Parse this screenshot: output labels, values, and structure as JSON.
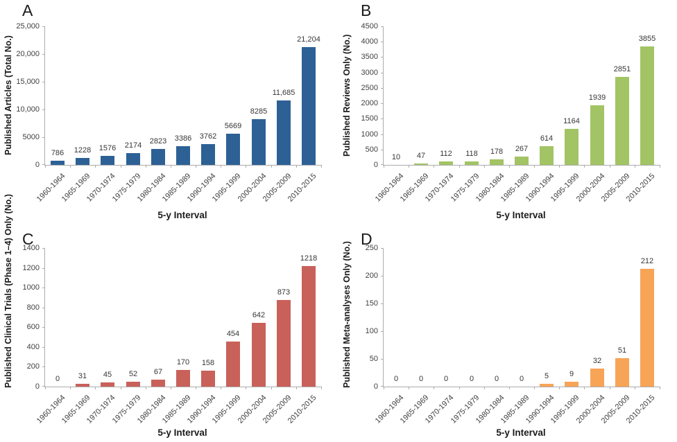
{
  "figure_title": "",
  "chart_data": [
    {
      "type": "bar",
      "panel": "A",
      "ylabel": "Published Articles (Total No.)",
      "xlabel": "5-y Interval",
      "color": "#2d6195",
      "ymax": 25000,
      "grid": false,
      "legend": "none",
      "yticks": [
        {
          "v": 0,
          "label": "0"
        },
        {
          "v": 5000,
          "label": "5000"
        },
        {
          "v": 10000,
          "label": "10,000"
        },
        {
          "v": 15000,
          "label": "15,000"
        },
        {
          "v": 20000,
          "label": "20,000"
        },
        {
          "v": 25000,
          "label": "25,000"
        }
      ],
      "categories": [
        "1960-1964",
        "1965-1969",
        "1970-1974",
        "1975-1979",
        "1980-1984",
        "1985-1989",
        "1990-1994",
        "1995-1999",
        "2000-2004",
        "2005-2009",
        "2010-2015"
      ],
      "values": [
        786,
        1228,
        1576,
        2174,
        2823,
        3386,
        3762,
        5669,
        8285,
        11685,
        21204
      ],
      "value_labels": [
        "786",
        "1228",
        "1576",
        "2174",
        "2823",
        "3386",
        "3762",
        "5669",
        "8285",
        "11,685",
        "21,204"
      ]
    },
    {
      "type": "bar",
      "panel": "B",
      "ylabel": "Published Reviews Only (No.)",
      "xlabel": "5-y Interval",
      "color": "#a2c464",
      "ymax": 4500,
      "grid": false,
      "legend": "none",
      "yticks": [
        {
          "v": 0,
          "label": "0"
        },
        {
          "v": 500,
          "label": "500"
        },
        {
          "v": 1000,
          "label": "1000"
        },
        {
          "v": 1500,
          "label": "1500"
        },
        {
          "v": 2000,
          "label": "2000"
        },
        {
          "v": 2500,
          "label": "2500"
        },
        {
          "v": 3000,
          "label": "3000"
        },
        {
          "v": 3500,
          "label": "3500"
        },
        {
          "v": 4000,
          "label": "4000"
        },
        {
          "v": 4500,
          "label": "4500"
        }
      ],
      "categories": [
        "1960-1964",
        "1965-1969",
        "1970-1974",
        "1975-1979",
        "1980-1984",
        "1985-1989",
        "1990-1994",
        "1995-1999",
        "2000-2004",
        "2005-2009",
        "2010-2015"
      ],
      "values": [
        10,
        47,
        112,
        118,
        178,
        267,
        614,
        1164,
        1939,
        2851,
        3855
      ],
      "value_labels": [
        "10",
        "47",
        "112",
        "118",
        "178",
        "267",
        "614",
        "1164",
        "1939",
        "2851",
        "3855"
      ]
    },
    {
      "type": "bar",
      "panel": "C",
      "ylabel": "Published Clinical Trials (Phase 1–4) Only (No.)",
      "xlabel": "5-y Interval",
      "color": "#c9615b",
      "ymax": 1400,
      "grid": false,
      "legend": "none",
      "yticks": [
        {
          "v": 0,
          "label": "0"
        },
        {
          "v": 200,
          "label": "200"
        },
        {
          "v": 400,
          "label": "400"
        },
        {
          "v": 600,
          "label": "600"
        },
        {
          "v": 800,
          "label": "800"
        },
        {
          "v": 1000,
          "label": "1000"
        },
        {
          "v": 1200,
          "label": "1200"
        },
        {
          "v": 1400,
          "label": "1400"
        }
      ],
      "categories": [
        "1960-1964",
        "1965-1969",
        "1970-1974",
        "1975-1979",
        "1980-1984",
        "1985-1989",
        "1990-1994",
        "1995-1999",
        "2000-2004",
        "2005-2009",
        "2010-2015"
      ],
      "values": [
        0,
        31,
        45,
        52,
        67,
        170,
        158,
        454,
        642,
        873,
        1218
      ],
      "value_labels": [
        "0",
        "31",
        "45",
        "52",
        "67",
        "170",
        "158",
        "454",
        "642",
        "873",
        "1218"
      ]
    },
    {
      "type": "bar",
      "panel": "D",
      "ylabel": "Published Meta-analyses Only (No.)",
      "xlabel": "5-y Interval",
      "color": "#f7a457",
      "ymax": 250,
      "grid": false,
      "legend": "none",
      "yticks": [
        {
          "v": 0,
          "label": "0"
        },
        {
          "v": 50,
          "label": "50"
        },
        {
          "v": 100,
          "label": "100"
        },
        {
          "v": 150,
          "label": "150"
        },
        {
          "v": 200,
          "label": "200"
        },
        {
          "v": 250,
          "label": "250"
        }
      ],
      "categories": [
        "1960-1964",
        "1965-1969",
        "1970-1974",
        "1975-1979",
        "1980-1984",
        "1985-1989",
        "1990-1994",
        "1995-1999",
        "2000-2004",
        "2005-2009",
        "2010-2015"
      ],
      "values": [
        0,
        0,
        0,
        0,
        0,
        0,
        5,
        9,
        32,
        51,
        212
      ],
      "value_labels": [
        "0",
        "0",
        "0",
        "0",
        "0",
        "0",
        "5",
        "9",
        "32",
        "51",
        "212"
      ]
    }
  ]
}
